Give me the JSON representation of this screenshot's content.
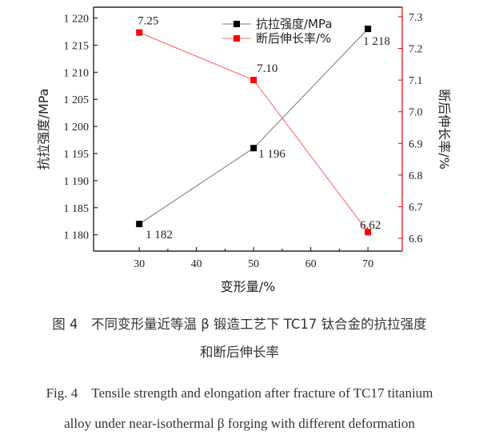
{
  "chart_data": {
    "type": "line",
    "x": [
      30,
      50,
      70
    ],
    "xlabel": "变形量/%",
    "xticks": [
      "30",
      "40",
      "50",
      "60",
      "70"
    ],
    "xlim": [
      22,
      76
    ],
    "series": [
      {
        "name": "抗拉强度/MPa",
        "axis": "left",
        "color": "#000000",
        "line_color": "#808080",
        "values": [
          1182,
          1196,
          1218
        ],
        "labels": [
          "1 182",
          "1 196",
          "1 218"
        ]
      },
      {
        "name": "断后伸长率/%",
        "axis": "right",
        "color": "#ff0000",
        "line_color": "#ff6b6b",
        "values": [
          7.25,
          7.1,
          6.62
        ],
        "labels": [
          "7.25",
          "7.10",
          "6.62"
        ]
      }
    ],
    "y_left": {
      "label": "抗拉强度/MPa",
      "lim": [
        1177,
        1222
      ],
      "ticks": [
        1180,
        1185,
        1190,
        1195,
        1200,
        1205,
        1210,
        1215,
        1220
      ],
      "tick_labels": [
        "1 180",
        "1 185",
        "1 190",
        "1 195",
        "1 200",
        "1 205",
        "1 210",
        "1 215",
        "1 220"
      ]
    },
    "y_right": {
      "label": "断后伸长率/%",
      "lim": [
        6.56,
        7.33
      ],
      "ticks": [
        6.6,
        6.7,
        6.8,
        6.9,
        7.0,
        7.1,
        7.2,
        7.3
      ],
      "tick_labels": [
        "6.6",
        "6.7",
        "6.8",
        "6.9",
        "7.0",
        "7.1",
        "7.2",
        "7.3"
      ],
      "color": "#e00000"
    },
    "legend_placement": "top-center",
    "grid": false
  },
  "caption": {
    "zh_line1": "图 4　不同变形量近等温 β 锻造工艺下 TC17 钛合金的抗拉强度",
    "zh_line2": "和断后伸长率",
    "en_line1": "Fig. 4　Tensile strength and elongation after fracture of TC17 titanium",
    "en_line2": "alloy under near-isothermal β forging with different deformation"
  }
}
